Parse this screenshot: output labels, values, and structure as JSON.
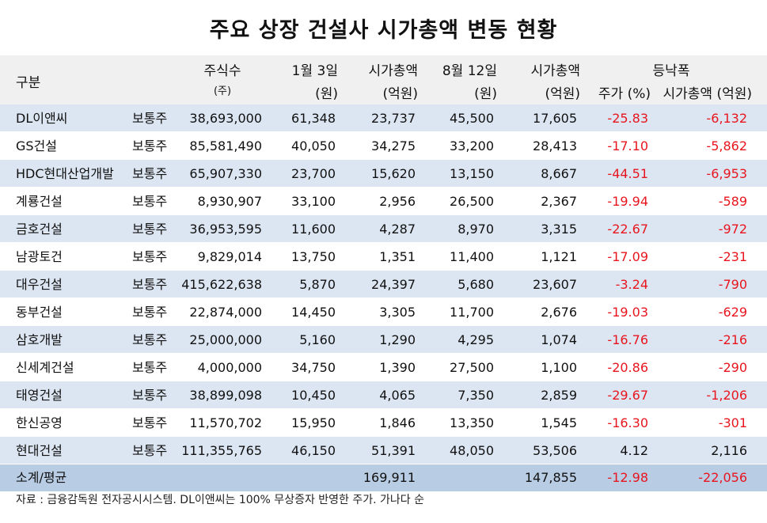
{
  "title": "주요 상장 건설사 시가총액 변동 현황",
  "header": {
    "gubun": "구분",
    "shares_l1": "주식수",
    "shares_l2": "(주)",
    "price1_l1": "1월 3일",
    "price1_l2": "(원)",
    "mcap1_l1": "시가총액",
    "mcap1_l2": "(억원)",
    "price2_l1": "8월 12일",
    "price2_l2": "(원)",
    "mcap2_l1": "시가총액",
    "mcap2_l2": "(억원)",
    "change": "등낙폭",
    "pct": "주가 (%)",
    "mcap_change": "시가총액 (억원)"
  },
  "rows": [
    {
      "name": "DL이앤씨",
      "type": "보통주",
      "shares": "38,693,000",
      "price1": "61,348",
      "mcap1": "23,737",
      "price2": "45,500",
      "mcap2": "17,605",
      "pct": "-25.83",
      "chg": "-6,132"
    },
    {
      "name": "GS건설",
      "type": "보통주",
      "shares": "85,581,490",
      "price1": "40,050",
      "mcap1": "34,275",
      "price2": "33,200",
      "mcap2": "28,413",
      "pct": "-17.10",
      "chg": "-5,862"
    },
    {
      "name": "HDC현대산업개발",
      "type": "보통주",
      "shares": "65,907,330",
      "price1": "23,700",
      "mcap1": "15,620",
      "price2": "13,150",
      "mcap2": "8,667",
      "pct": "-44.51",
      "chg": "-6,953"
    },
    {
      "name": "계룡건설",
      "type": "보통주",
      "shares": "8,930,907",
      "price1": "33,100",
      "mcap1": "2,956",
      "price2": "26,500",
      "mcap2": "2,367",
      "pct": "-19.94",
      "chg": "-589"
    },
    {
      "name": "금호건설",
      "type": "보통주",
      "shares": "36,953,595",
      "price1": "11,600",
      "mcap1": "4,287",
      "price2": "8,970",
      "mcap2": "3,315",
      "pct": "-22.67",
      "chg": "-972"
    },
    {
      "name": "남광토건",
      "type": "보통주",
      "shares": "9,829,014",
      "price1": "13,750",
      "mcap1": "1,351",
      "price2": "11,400",
      "mcap2": "1,121",
      "pct": "-17.09",
      "chg": "-231"
    },
    {
      "name": "대우건설",
      "type": "보통주",
      "shares": "415,622,638",
      "price1": "5,870",
      "mcap1": "24,397",
      "price2": "5,680",
      "mcap2": "23,607",
      "pct": "-3.24",
      "chg": "-790"
    },
    {
      "name": "동부건설",
      "type": "보통주",
      "shares": "22,874,000",
      "price1": "14,450",
      "mcap1": "3,305",
      "price2": "11,700",
      "mcap2": "2,676",
      "pct": "-19.03",
      "chg": "-629"
    },
    {
      "name": "삼호개발",
      "type": "보통주",
      "shares": "25,000,000",
      "price1": "5,160",
      "mcap1": "1,290",
      "price2": "4,295",
      "mcap2": "1,074",
      "pct": "-16.76",
      "chg": "-216"
    },
    {
      "name": "신세계건설",
      "type": "보통주",
      "shares": "4,000,000",
      "price1": "34,750",
      "mcap1": "1,390",
      "price2": "27,500",
      "mcap2": "1,100",
      "pct": "-20.86",
      "chg": "-290"
    },
    {
      "name": "태영건설",
      "type": "보통주",
      "shares": "38,899,098",
      "price1": "10,450",
      "mcap1": "4,065",
      "price2": "7,350",
      "mcap2": "2,859",
      "pct": "-29.67",
      "chg": "-1,206"
    },
    {
      "name": "한신공영",
      "type": "보통주",
      "shares": "11,570,702",
      "price1": "15,950",
      "mcap1": "1,846",
      "price2": "13,350",
      "mcap2": "1,545",
      "pct": "-16.30",
      "chg": "-301"
    },
    {
      "name": "현대건설",
      "type": "보통주",
      "shares": "111,355,765",
      "price1": "46,150",
      "mcap1": "51,391",
      "price2": "48,050",
      "mcap2": "53,506",
      "pct": "4.12",
      "chg": "2,116"
    }
  ],
  "total": {
    "label": "소계/평균",
    "mcap1": "169,911",
    "mcap2": "147,855",
    "pct": "-12.98",
    "chg": "-22,056"
  },
  "source": "자료 : 금융감독원 전자공시시스템. DL이앤씨는 100% 무상증자 반영한 주가. 가나다 순",
  "colors": {
    "negative": "#e8151e",
    "row_alt": "#dce6f2",
    "total_bg": "#b8cce4",
    "header_bg": "#f0f0f0"
  }
}
